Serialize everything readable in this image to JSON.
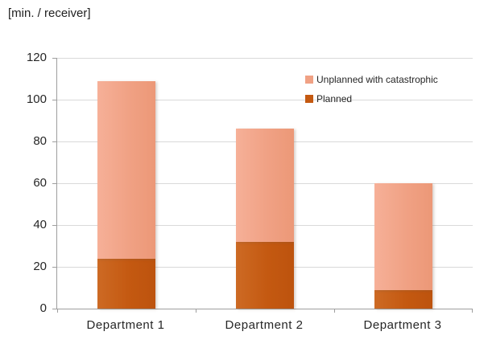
{
  "title": "[min. / receiver]",
  "legend": {
    "items": [
      {
        "label": "Unplanned with catastrophic",
        "color": "#f0a184"
      },
      {
        "label": "Planned",
        "color": "#c45911"
      }
    ]
  },
  "chart_data": {
    "type": "bar",
    "stacked": true,
    "title": "[min. / receiver]",
    "ylabel": "[min. / receiver]",
    "xlabel": "",
    "categories": [
      "Department 1",
      "Department 2",
      "Department 3"
    ],
    "series": [
      {
        "name": "Planned",
        "color": "#c45911",
        "values": [
          24,
          32,
          9
        ]
      },
      {
        "name": "Unplanned with catastrophic",
        "color": "#f0a184",
        "values": [
          85,
          54,
          51
        ]
      }
    ],
    "stack_totals": [
      109,
      86,
      60
    ],
    "ylim": [
      0,
      120
    ],
    "yticks": [
      0,
      20,
      40,
      60,
      80,
      100,
      120
    ],
    "grid": true,
    "legend_position": "top-right-inside"
  }
}
